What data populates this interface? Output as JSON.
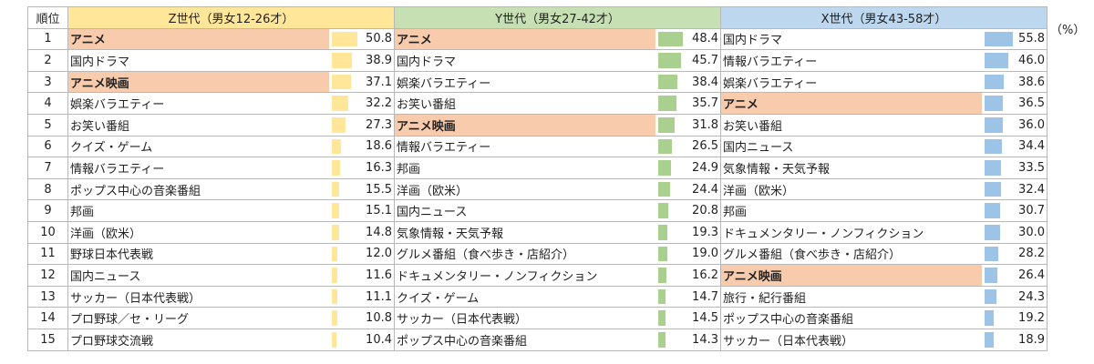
{
  "unit_label": "（%）",
  "rank_header": "順位",
  "colors": {
    "z_header": "#ffe699",
    "y_header": "#c6e0b4",
    "x_header": "#bdd7ee",
    "highlight": "#f8cbad"
  },
  "generations": [
    {
      "key": "z",
      "header": "Z世代（男女12-26才）",
      "rows": [
        {
          "label": "アニメ",
          "value": "50.8",
          "highlight": true
        },
        {
          "label": "国内ドラマ",
          "value": "38.9",
          "highlight": false
        },
        {
          "label": "アニメ映画",
          "value": "37.1",
          "highlight": true
        },
        {
          "label": "娯楽バラエティー",
          "value": "32.2",
          "highlight": false
        },
        {
          "label": "お笑い番組",
          "value": "27.3",
          "highlight": false
        },
        {
          "label": "クイズ・ゲーム",
          "value": "18.6",
          "highlight": false
        },
        {
          "label": "情報バラエティー",
          "value": "16.3",
          "highlight": false
        },
        {
          "label": "ポップス中心の音楽番組",
          "value": "15.5",
          "highlight": false
        },
        {
          "label": "邦画",
          "value": "15.1",
          "highlight": false
        },
        {
          "label": "洋画（欧米）",
          "value": "14.8",
          "highlight": false
        },
        {
          "label": "野球日本代表戦",
          "value": "12.0",
          "highlight": false
        },
        {
          "label": "国内ニュース",
          "value": "11.6",
          "highlight": false
        },
        {
          "label": "サッカー（日本代表戦）",
          "value": "11.1",
          "highlight": false
        },
        {
          "label": "プロ野球／セ・リーグ",
          "value": "10.8",
          "highlight": false
        },
        {
          "label": "プロ野球交流戦",
          "value": "10.4",
          "highlight": false
        }
      ]
    },
    {
      "key": "y",
      "header": "Y世代（男女27-42才）",
      "rows": [
        {
          "label": "アニメ",
          "value": "48.4",
          "highlight": true
        },
        {
          "label": "国内ドラマ",
          "value": "45.7",
          "highlight": false
        },
        {
          "label": "娯楽バラエティー",
          "value": "38.4",
          "highlight": false
        },
        {
          "label": "お笑い番組",
          "value": "35.7",
          "highlight": false
        },
        {
          "label": "アニメ映画",
          "value": "31.8",
          "highlight": true
        },
        {
          "label": "情報バラエティー",
          "value": "26.5",
          "highlight": false
        },
        {
          "label": "邦画",
          "value": "24.9",
          "highlight": false
        },
        {
          "label": "洋画（欧米）",
          "value": "24.4",
          "highlight": false
        },
        {
          "label": "国内ニュース",
          "value": "20.8",
          "highlight": false
        },
        {
          "label": "気象情報・天気予報",
          "value": "19.3",
          "highlight": false
        },
        {
          "label": "グルメ番組（食べ歩き・店紹介）",
          "value": "19.0",
          "highlight": false
        },
        {
          "label": "ドキュメンタリー・ノンフィクション",
          "value": "16.2",
          "highlight": false
        },
        {
          "label": "クイズ・ゲーム",
          "value": "14.7",
          "highlight": false
        },
        {
          "label": "サッカー（日本代表戦）",
          "value": "14.5",
          "highlight": false
        },
        {
          "label": "ポップス中心の音楽番組",
          "value": "14.3",
          "highlight": false
        }
      ]
    },
    {
      "key": "x",
      "header": "X世代（男女43-58才）",
      "rows": [
        {
          "label": "国内ドラマ",
          "value": "55.8",
          "highlight": false
        },
        {
          "label": "情報バラエティー",
          "value": "46.0",
          "highlight": false
        },
        {
          "label": "娯楽バラエティー",
          "value": "38.6",
          "highlight": false
        },
        {
          "label": "アニメ",
          "value": "36.5",
          "highlight": true
        },
        {
          "label": "お笑い番組",
          "value": "36.0",
          "highlight": false
        },
        {
          "label": "国内ニュース",
          "value": "34.4",
          "highlight": false
        },
        {
          "label": "気象情報・天気予報",
          "value": "33.5",
          "highlight": false
        },
        {
          "label": "洋画（欧米）",
          "value": "32.4",
          "highlight": false
        },
        {
          "label": "邦画",
          "value": "30.7",
          "highlight": false
        },
        {
          "label": "ドキュメンタリー・ノンフィクション",
          "value": "30.0",
          "highlight": false
        },
        {
          "label": "グルメ番組（食べ歩き・店紹介）",
          "value": "28.2",
          "highlight": false
        },
        {
          "label": "アニメ映画",
          "value": "26.4",
          "highlight": true
        },
        {
          "label": "旅行・紀行番組",
          "value": "24.3",
          "highlight": false
        },
        {
          "label": "ポップス中心の音楽番組",
          "value": "19.2",
          "highlight": false
        },
        {
          "label": "サッカー（日本代表戦）",
          "value": "18.9",
          "highlight": false
        }
      ]
    }
  ]
}
